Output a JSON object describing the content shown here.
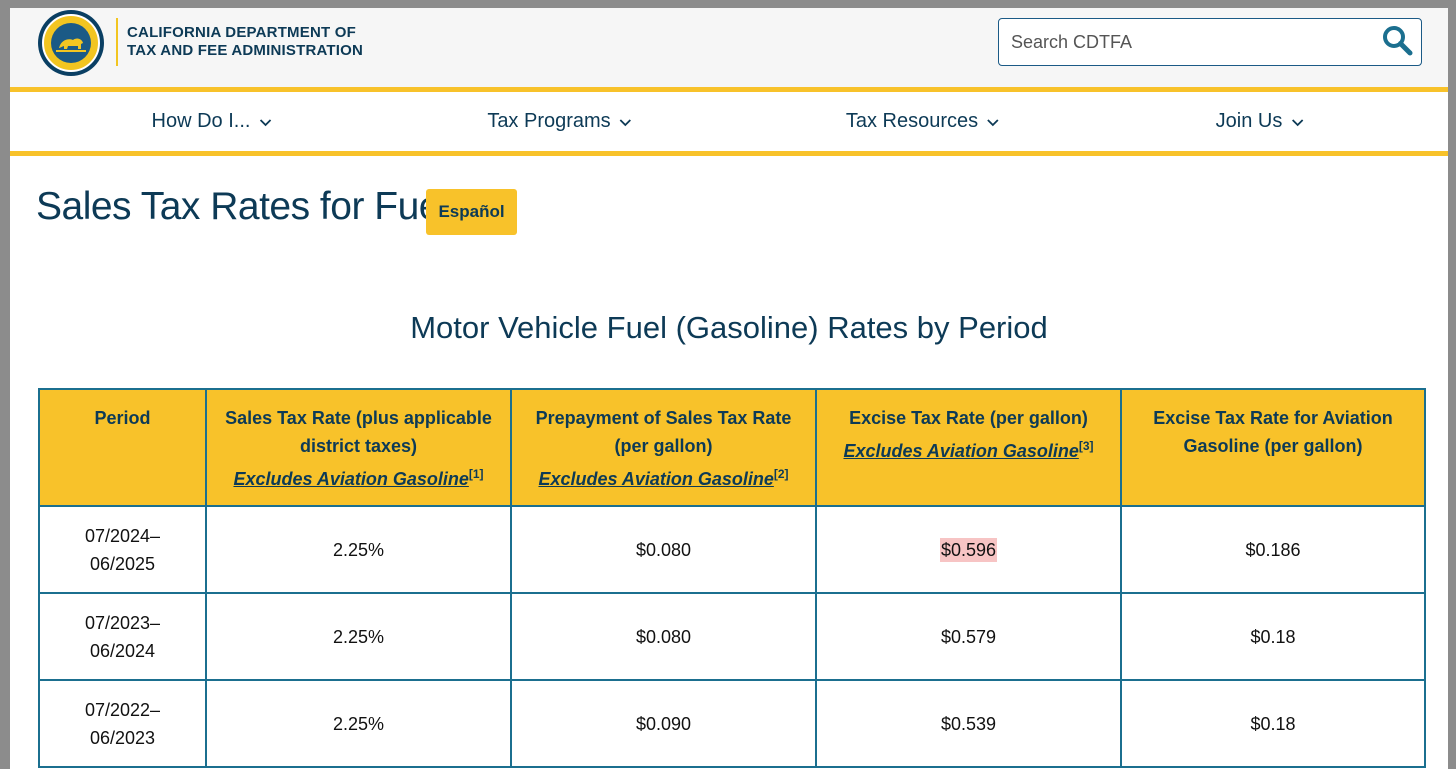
{
  "header": {
    "org_line1": "CALIFORNIA DEPARTMENT OF",
    "org_line2": "TAX AND FEE ADMINISTRATION",
    "logo_icon": "cdtfa-seal-icon",
    "search": {
      "placeholder": "Search CDTFA",
      "icon": "search-icon"
    }
  },
  "nav": {
    "items": [
      {
        "label": "How Do I...",
        "icon": "chevron-down-icon"
      },
      {
        "label": "Tax Programs",
        "icon": "chevron-down-icon"
      },
      {
        "label": "Tax Resources",
        "icon": "chevron-down-icon"
      },
      {
        "label": "Join Us",
        "icon": "chevron-down-icon"
      }
    ]
  },
  "page": {
    "title": "Sales Tax Rates for Fuels",
    "language_button": "Español",
    "table_title": "Motor Vehicle Fuel (Gasoline) Rates by Period"
  },
  "table": {
    "headers": [
      {
        "label": "Period"
      },
      {
        "label": "Sales Tax Rate (plus applicable district taxes)",
        "link": "Excludes Aviation Gasoline",
        "note": "[1]"
      },
      {
        "label": "Prepayment of Sales Tax Rate (per gallon)",
        "link": "Excludes Aviation Gasoline",
        "note": "[2]"
      },
      {
        "label": "Excise Tax Rate (per gallon)",
        "link": "Excludes Aviation Gasoline",
        "note": "[3]"
      },
      {
        "label": "Excise Tax Rate for Aviation Gasoline (per gallon)"
      }
    ],
    "rows": [
      {
        "period": "07/2024–06/2025",
        "sales_tax": "2.25%",
        "prepayment": "$0.080",
        "excise": "$0.596",
        "aviation": "$0.186"
      },
      {
        "period": "07/2023–06/2024",
        "sales_tax": "2.25%",
        "prepayment": "$0.080",
        "excise": "$0.579",
        "aviation": "$0.18"
      },
      {
        "period": "07/2022–06/2023",
        "sales_tax": "2.25%",
        "prepayment": "$0.090",
        "excise": "$0.539",
        "aviation": "$0.18"
      }
    ],
    "highlight_color": "#f7c4c4"
  },
  "colors": {
    "accent_yellow": "#f8c22a",
    "navy": "#0d3a56",
    "table_border": "#1b6f8f"
  }
}
